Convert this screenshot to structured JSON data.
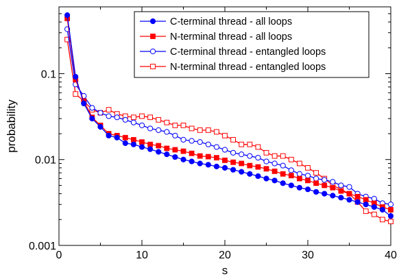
{
  "chart_data": {
    "type": "line",
    "xlabel": "s",
    "ylabel": "probability",
    "xlim": [
      0,
      40
    ],
    "ylim": [
      0.001,
      0.6
    ],
    "yscale": "log",
    "x_ticks": [
      0,
      10,
      20,
      30,
      40
    ],
    "x_tick_labels": [
      "0",
      "10",
      "20",
      "30",
      "40"
    ],
    "y_ticks": [
      0.001,
      0.01,
      0.1
    ],
    "y_tick_labels": [
      "0.001",
      "0.01",
      "0.1"
    ],
    "grid": false,
    "legend_position": "top-right",
    "x": [
      1,
      2,
      3,
      4,
      5,
      6,
      7,
      8,
      9,
      10,
      11,
      12,
      13,
      14,
      15,
      16,
      17,
      18,
      19,
      20,
      21,
      22,
      23,
      24,
      25,
      26,
      27,
      28,
      29,
      30,
      31,
      32,
      33,
      34,
      35,
      36,
      37,
      38,
      39,
      40
    ],
    "series": [
      {
        "name": "C-terminal thread - all loops",
        "color": "#0000ff",
        "marker": "circle",
        "filled": true,
        "values": [
          0.48,
          0.092,
          0.045,
          0.03,
          0.024,
          0.019,
          0.018,
          0.0155,
          0.015,
          0.014,
          0.0132,
          0.0123,
          0.0115,
          0.0107,
          0.01,
          0.0095,
          0.009,
          0.0087,
          0.0083,
          0.008,
          0.0076,
          0.0072,
          0.0068,
          0.0064,
          0.006,
          0.0057,
          0.0053,
          0.005,
          0.0047,
          0.0045,
          0.0042,
          0.004,
          0.0038,
          0.0036,
          0.0034,
          0.0032,
          0.003,
          0.0028,
          0.0026,
          0.0022
        ]
      },
      {
        "name": "N-terminal thread - all loops",
        "color": "#ff0000",
        "marker": "square",
        "filled": true,
        "values": [
          0.44,
          0.085,
          0.048,
          0.031,
          0.025,
          0.02,
          0.019,
          0.018,
          0.017,
          0.016,
          0.015,
          0.0145,
          0.0135,
          0.013,
          0.0125,
          0.0118,
          0.011,
          0.0108,
          0.0105,
          0.0098,
          0.0093,
          0.009,
          0.0085,
          0.0082,
          0.0078,
          0.0073,
          0.0068,
          0.0065,
          0.006,
          0.0057,
          0.0053,
          0.005,
          0.0047,
          0.0043,
          0.004,
          0.0037,
          0.0034,
          0.0031,
          0.0028,
          0.0026
        ]
      },
      {
        "name": "C-terminal thread - entangled loops",
        "color": "#0000ff",
        "marker": "circle",
        "filled": false,
        "values": [
          0.33,
          0.075,
          0.055,
          0.04,
          0.035,
          0.032,
          0.031,
          0.029,
          0.027,
          0.025,
          0.023,
          0.022,
          0.021,
          0.019,
          0.017,
          0.0165,
          0.016,
          0.015,
          0.014,
          0.013,
          0.012,
          0.0115,
          0.011,
          0.0105,
          0.0095,
          0.009,
          0.0085,
          0.0075,
          0.0068,
          0.0065,
          0.006,
          0.0058,
          0.0055,
          0.005,
          0.0048,
          0.004,
          0.0037,
          0.0035,
          0.0031,
          0.003
        ]
      },
      {
        "name": "N-terminal thread - entangled loops",
        "color": "#ff0000",
        "marker": "square",
        "filled": false,
        "values": [
          0.25,
          0.058,
          0.048,
          0.038,
          0.035,
          0.038,
          0.034,
          0.032,
          0.031,
          0.032,
          0.031,
          0.029,
          0.027,
          0.025,
          0.025,
          0.023,
          0.022,
          0.022,
          0.021,
          0.019,
          0.017,
          0.015,
          0.015,
          0.014,
          0.012,
          0.011,
          0.011,
          0.01,
          0.009,
          0.008,
          0.007,
          0.006,
          0.005,
          0.0045,
          0.004,
          0.0032,
          0.0025,
          0.0023,
          0.002,
          0.0019
        ]
      }
    ]
  }
}
